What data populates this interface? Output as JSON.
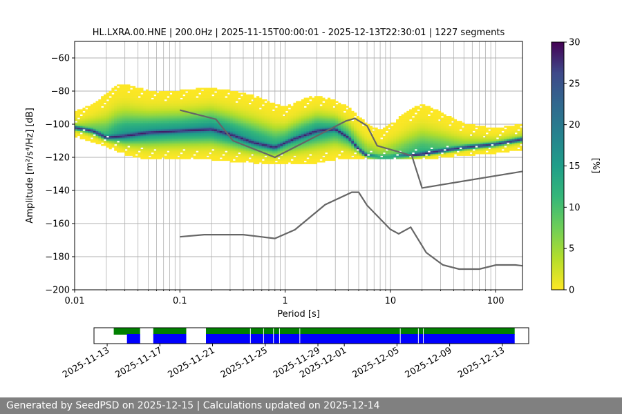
{
  "chart_data": {
    "type": "heatmap",
    "title": "HL.LXRA.00.HNE | 200.0Hz | 2025-11-15T00:00:01 - 2025-12-13T22:30:01 | 1227 segments",
    "xlabel": "Period [s]",
    "ylabel": "Amplitude [m²/s⁴/Hz] [dB]",
    "xscale": "log",
    "xlim": [
      0.01,
      180
    ],
    "ylim": [
      -200,
      -50
    ],
    "xticks": [
      0.01,
      0.1,
      1,
      10,
      100
    ],
    "xtick_labels": [
      "0.01",
      "0.1",
      "1",
      "10",
      "100"
    ],
    "yticks": [
      -60,
      -80,
      -100,
      -120,
      -140,
      -160,
      -180,
      -200
    ],
    "ytick_labels": [
      "−60",
      "−80",
      "−100",
      "−120",
      "−140",
      "−160",
      "−180",
      "−200"
    ],
    "grid": true,
    "colorbar": {
      "label": "[%]",
      "range": [
        0,
        30
      ],
      "ticks": [
        0,
        5,
        10,
        15,
        20,
        25,
        30
      ],
      "tick_labels": [
        "0",
        "5",
        "10",
        "15",
        "20",
        "25",
        "30"
      ],
      "colormap": "viridis_r"
    },
    "series": [
      {
        "name": "mode",
        "points": [
          [
            0.01,
            -102
          ],
          [
            0.015,
            -104
          ],
          [
            0.02,
            -108
          ],
          [
            0.03,
            -107
          ],
          [
            0.05,
            -105
          ],
          [
            0.1,
            -104
          ],
          [
            0.2,
            -103
          ],
          [
            0.3,
            -106
          ],
          [
            0.5,
            -111
          ],
          [
            0.8,
            -114
          ],
          [
            1.2,
            -109
          ],
          [
            2,
            -104
          ],
          [
            3,
            -103
          ],
          [
            4,
            -108
          ],
          [
            5,
            -115
          ],
          [
            6,
            -119
          ],
          [
            8,
            -120
          ],
          [
            10,
            -120
          ],
          [
            15,
            -119
          ],
          [
            20,
            -118
          ],
          [
            30,
            -116
          ],
          [
            50,
            -114
          ],
          [
            100,
            -112
          ],
          [
            180,
            -109
          ]
        ]
      },
      {
        "name": "upper_noise_model",
        "points": [
          [
            0.1,
            -91.5
          ],
          [
            0.22,
            -97
          ],
          [
            0.32,
            -110
          ],
          [
            0.8,
            -120
          ],
          [
            3.8,
            -98
          ],
          [
            4.6,
            -96.5
          ],
          [
            6,
            -101
          ],
          [
            7.5,
            -113
          ],
          [
            16,
            -119
          ],
          [
            20,
            -138.5
          ],
          [
            180,
            -128.5
          ]
        ]
      },
      {
        "name": "lower_noise_model",
        "points": [
          [
            0.1,
            -168
          ],
          [
            0.17,
            -166.7
          ],
          [
            0.4,
            -166.7
          ],
          [
            0.8,
            -169
          ],
          [
            1.24,
            -163.7
          ],
          [
            2.4,
            -148.6
          ],
          [
            4.3,
            -141.1
          ],
          [
            5,
            -141.1
          ],
          [
            6,
            -149
          ],
          [
            10,
            -163.5
          ],
          [
            12,
            -166.2
          ],
          [
            15.6,
            -162.2
          ],
          [
            21.9,
            -177.5
          ],
          [
            31.6,
            -185
          ],
          [
            45,
            -187.5
          ],
          [
            70,
            -187.5
          ],
          [
            101,
            -185
          ],
          [
            154,
            -185
          ],
          [
            180,
            -185.5
          ]
        ]
      }
    ],
    "density_envelope": {
      "upper": [
        [
          0.01,
          -93
        ],
        [
          0.015,
          -88
        ],
        [
          0.02,
          -82
        ],
        [
          0.025,
          -77
        ],
        [
          0.03,
          -76
        ],
        [
          0.05,
          -80
        ],
        [
          0.1,
          -80
        ],
        [
          0.2,
          -78
        ],
        [
          0.3,
          -80
        ],
        [
          0.5,
          -83
        ],
        [
          0.8,
          -88
        ],
        [
          1,
          -90
        ],
        [
          1.5,
          -85
        ],
        [
          2,
          -83
        ],
        [
          3,
          -86
        ],
        [
          4,
          -90
        ],
        [
          6,
          -100
        ],
        [
          8,
          -104
        ],
        [
          10,
          -100
        ],
        [
          15,
          -92
        ],
        [
          20,
          -88
        ],
        [
          30,
          -93
        ],
        [
          50,
          -100
        ],
        [
          100,
          -103
        ],
        [
          180,
          -100
        ]
      ],
      "lower": [
        [
          0.01,
          -107
        ],
        [
          0.02,
          -113
        ],
        [
          0.03,
          -118
        ],
        [
          0.05,
          -121
        ],
        [
          0.1,
          -121
        ],
        [
          0.2,
          -121
        ],
        [
          0.3,
          -122
        ],
        [
          0.5,
          -123
        ],
        [
          0.8,
          -124
        ],
        [
          1,
          -124
        ],
        [
          2,
          -123
        ],
        [
          3,
          -121
        ],
        [
          5,
          -121
        ],
        [
          8,
          -121
        ],
        [
          10,
          -121
        ],
        [
          20,
          -121
        ],
        [
          40,
          -119
        ],
        [
          100,
          -117
        ],
        [
          180,
          -115
        ]
      ]
    },
    "availability": {
      "date_ticks": [
        "2025-11-13",
        "2025-11-17",
        "2025-11-21",
        "2025-11-25",
        "2025-11-29",
        "2025-12-01",
        "2025-12-05",
        "2025-12-09",
        "2025-12-13"
      ],
      "range": [
        "2025-11-12",
        "2025-12-15"
      ],
      "green_spans": [
        [
          "2025-11-13T12:00",
          "2025-11-15T12:00"
        ],
        [
          "2025-11-16T12:00",
          "2025-11-19T00:00"
        ],
        [
          "2025-11-20T12:00",
          "2025-12-13T22:30"
        ]
      ],
      "blue_spans": [
        [
          "2025-11-14T12:00",
          "2025-11-15T12:00"
        ],
        [
          "2025-11-16T12:00",
          "2025-11-19T00:00"
        ],
        [
          "2025-11-20T12:00",
          "2025-12-13T22:30"
        ]
      ],
      "gaps": [
        "2025-11-23T21:00",
        "2025-11-24T21:00",
        "2025-11-25T15:00",
        "2025-11-26T02:00",
        "2025-11-27T15:00",
        "2025-12-05T06:00",
        "2025-12-06T15:00",
        "2025-12-07T00:00"
      ],
      "green_color": "#008000",
      "blue_color": "#0000ff"
    },
    "footer": "Generated by SeedPSD on 2025-12-15 | Calculations updated on 2025-12-14"
  }
}
